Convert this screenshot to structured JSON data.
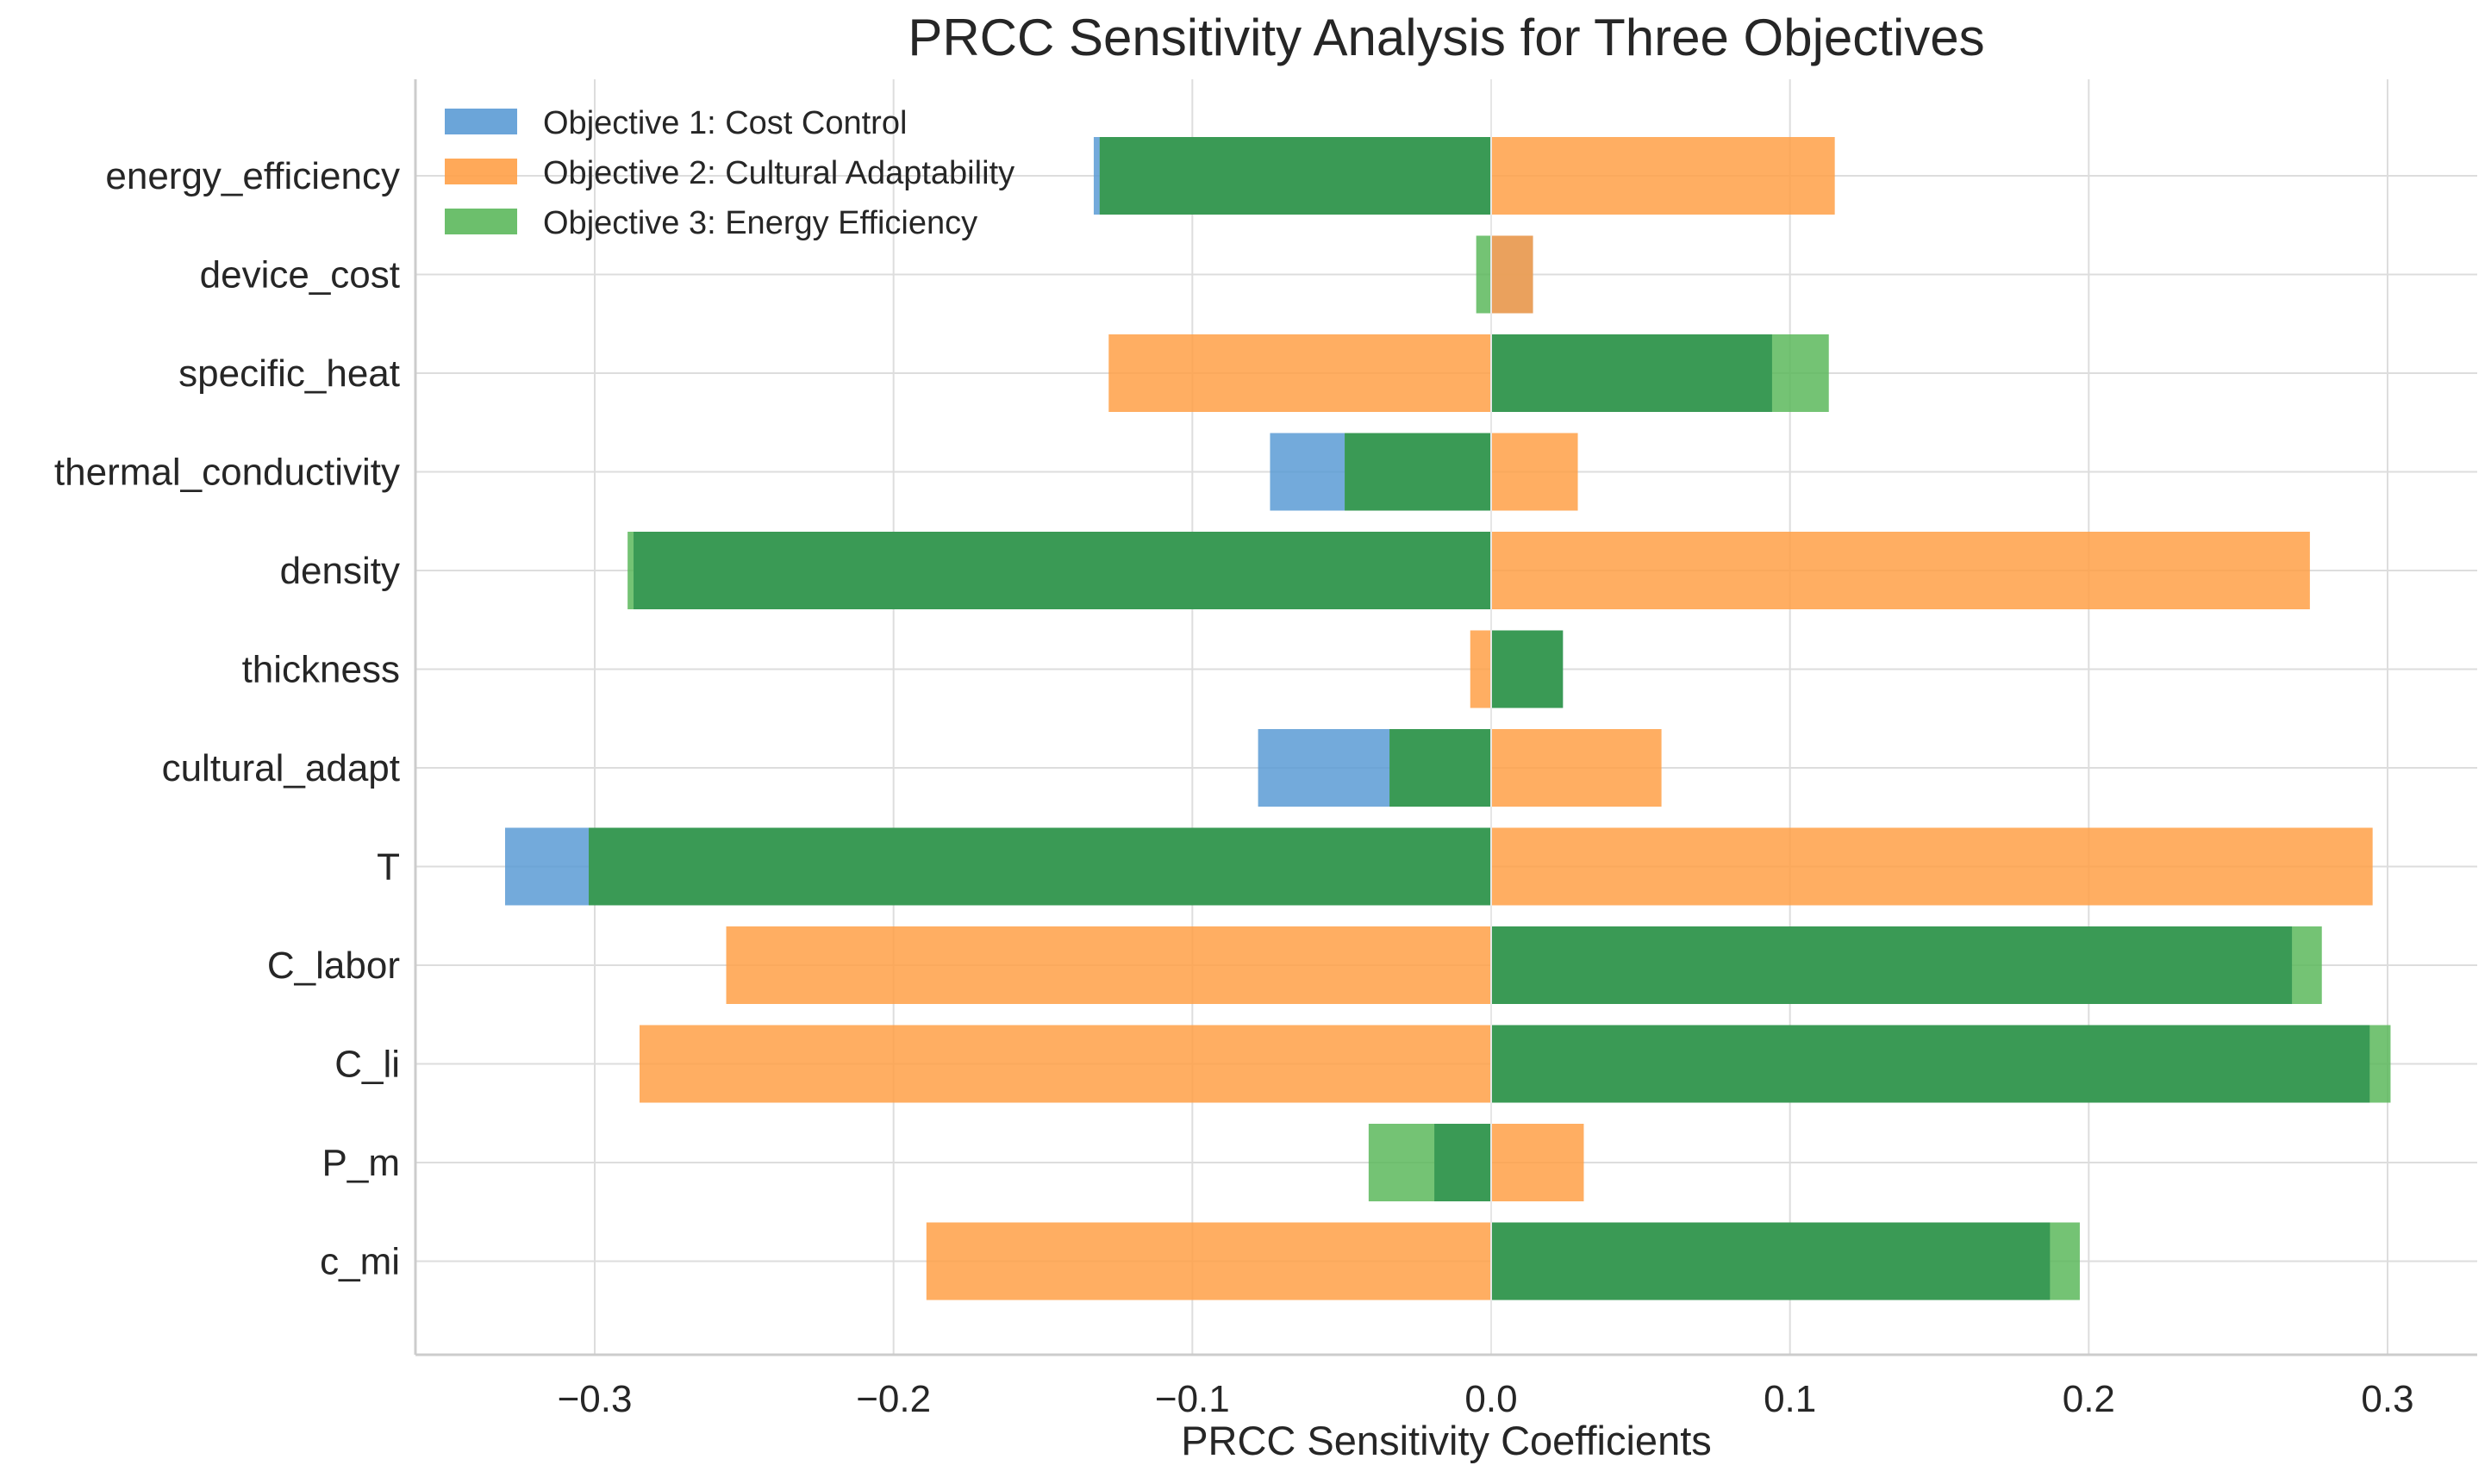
{
  "chart_data": {
    "type": "bar",
    "orientation": "horizontal",
    "title": "PRCC Sensitivity Analysis for Three Objectives",
    "xlabel": "PRCC Sensitivity Coefficients",
    "ylabel": "",
    "xlim": [
      -0.36,
      0.33
    ],
    "xticks": [
      -0.3,
      -0.2,
      -0.1,
      0.0,
      0.1,
      0.2,
      0.3
    ],
    "xtick_labels": [
      "−0.3",
      "−0.2",
      "−0.1",
      "0.0",
      "0.1",
      "0.2",
      "0.3"
    ],
    "grid": true,
    "legend_position": "top-left",
    "categories": [
      "energy_efficiency",
      "device_cost",
      "specific_heat",
      "thermal_conductivity",
      "density",
      "thickness",
      "cultural_adapt",
      "T",
      "C_labor",
      "C_li",
      "P_m",
      "c_mi"
    ],
    "series": [
      {
        "name": "Objective 1: Cost Control",
        "color": "#5b9bd5",
        "values": [
          -0.133,
          0.014,
          0.094,
          -0.074,
          -0.287,
          0.024,
          -0.078,
          -0.33,
          0.268,
          0.294,
          -0.019,
          0.187
        ]
      },
      {
        "name": "Objective 2: Cultural Adaptability",
        "color": "#ffa047",
        "values": [
          0.115,
          0.014,
          -0.128,
          0.029,
          0.274,
          -0.007,
          0.057,
          0.295,
          -0.256,
          -0.285,
          0.031,
          -0.189
        ]
      },
      {
        "name": "Objective 3: Energy Efficiency",
        "color": "#5cb85c",
        "values": [
          -0.131,
          -0.005,
          0.113,
          -0.049,
          -0.289,
          0.024,
          -0.034,
          -0.302,
          0.278,
          0.301,
          -0.041,
          0.197
        ]
      }
    ],
    "overlap_color": "#3a9a55"
  }
}
